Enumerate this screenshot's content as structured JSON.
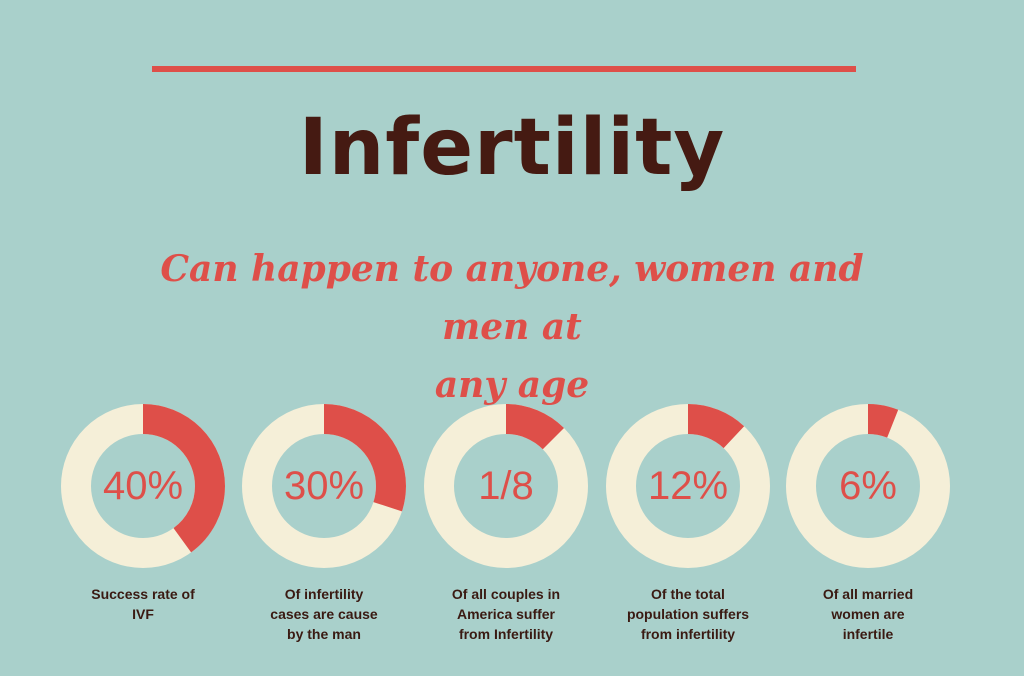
{
  "title": "Infertility",
  "subtitle_line1": "Can happen to anyone, women and men at",
  "subtitle_line2": "any age",
  "colors": {
    "background": "#a9d0cb",
    "accent": "#de4f49",
    "ring_track": "#f5efd8",
    "title": "#451a12"
  },
  "chart_data": {
    "type": "pie",
    "items": [
      {
        "label": "40%",
        "fraction": 0.4,
        "caption": [
          "Success rate of",
          "IVF"
        ]
      },
      {
        "label": "30%",
        "fraction": 0.3,
        "caption": [
          "Of infertility",
          "cases are cause",
          "by the man"
        ]
      },
      {
        "label": "1/8",
        "fraction": 0.125,
        "caption": [
          "Of all couples in",
          "America suffer",
          "from Infertility"
        ]
      },
      {
        "label": "12%",
        "fraction": 0.12,
        "caption": [
          "Of the total",
          "population suffers",
          "from infertility"
        ]
      },
      {
        "label": "6%",
        "fraction": 0.06,
        "caption": [
          "Of all married",
          "women are",
          "infertile"
        ]
      }
    ]
  }
}
